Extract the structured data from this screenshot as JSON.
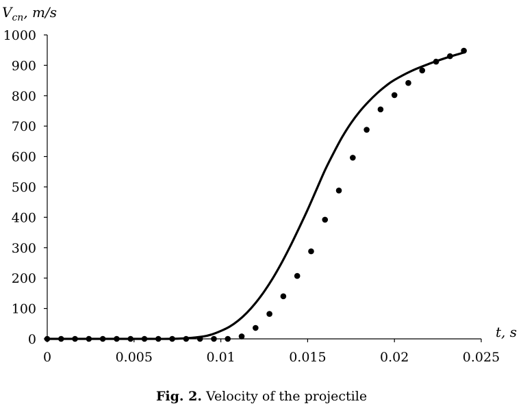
{
  "chart_data": {
    "type": "scatter",
    "ylabel": "V",
    "ylabel_sub": "cn",
    "ylabel_unit": ", m/s",
    "xlabel": "t, s",
    "xlim": [
      0,
      0.025
    ],
    "ylim": [
      0,
      1000
    ],
    "x_ticks": [
      "0",
      "0.005",
      "0.01",
      "0.015",
      "0.02",
      "0.025"
    ],
    "y_ticks": [
      "0",
      "100",
      "200",
      "300",
      "400",
      "500",
      "600",
      "700",
      "800",
      "900",
      "1000"
    ],
    "grid": false,
    "legend": "none",
    "series": [
      {
        "kind": "points",
        "x": [
          0,
          0.0008,
          0.0016,
          0.0024,
          0.0032,
          0.004,
          0.0048,
          0.0056,
          0.0064,
          0.0072,
          0.008,
          0.0088,
          0.0096,
          0.0104,
          0.0112,
          0.012,
          0.0128,
          0.0136,
          0.0144,
          0.0152,
          0.016,
          0.0168,
          0.0176,
          0.0184,
          0.0192,
          0.02,
          0.0208,
          0.0216,
          0.0224,
          0.0232,
          0.024
        ],
        "y": [
          0,
          0,
          0,
          0,
          0,
          0,
          0,
          0,
          0,
          0,
          0,
          0,
          0,
          0,
          8,
          36,
          82,
          140,
          207,
          288,
          392,
          488,
          596,
          688,
          755,
          802,
          842,
          883,
          912,
          930,
          948
        ]
      },
      {
        "kind": "curve",
        "x": [
          0,
          0.002,
          0.004,
          0.006,
          0.007,
          0.008,
          0.009,
          0.0095,
          0.01,
          0.0105,
          0.011,
          0.0115,
          0.012,
          0.0125,
          0.013,
          0.0135,
          0.014,
          0.0145,
          0.015,
          0.0155,
          0.016,
          0.0165,
          0.017,
          0.0175,
          0.018,
          0.0185,
          0.019,
          0.0195,
          0.02,
          0.021,
          0.022,
          0.023,
          0.024
        ],
        "y": [
          0,
          0,
          0,
          0,
          0,
          2,
          8,
          15,
          26,
          40,
          60,
          86,
          118,
          156,
          200,
          250,
          305,
          364,
          425,
          490,
          555,
          612,
          665,
          710,
          748,
          780,
          808,
          832,
          852,
          882,
          905,
          925,
          942
        ]
      }
    ]
  },
  "caption": {
    "fig_label": "Fig. 2.",
    "text": " Velocity of the projectile"
  }
}
